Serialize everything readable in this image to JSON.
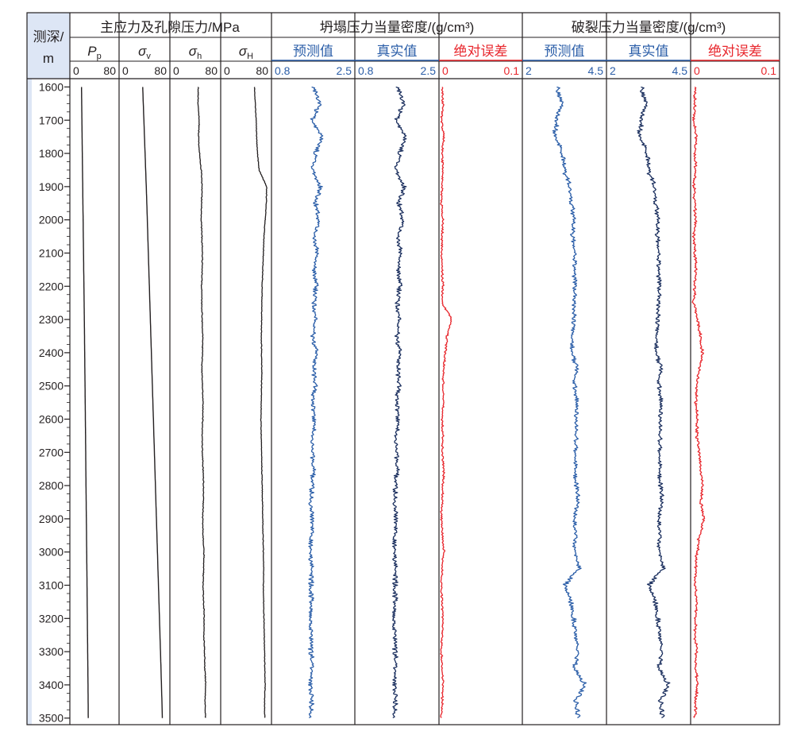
{
  "header": {
    "depth_label_1": "测深/",
    "depth_label_2": "m",
    "group_stress": "主应力及孔隙压力/MPa",
    "group_collapse": "坍塌压力当量密度/(g/cm³)",
    "group_fracture": "破裂压力当量密度/(g/cm³)"
  },
  "tracks": [
    {
      "id": "pp",
      "name": "P",
      "sub": "p",
      "italic": true,
      "min_label": "0",
      "max_label": "80",
      "color": "#231f20",
      "label_color": "#231f20"
    },
    {
      "id": "sv",
      "name": "σ",
      "sub": "v",
      "italic": true,
      "min_label": "0",
      "max_label": "80",
      "color": "#231f20",
      "label_color": "#231f20"
    },
    {
      "id": "sh",
      "name": "σ",
      "sub": "h",
      "italic": true,
      "min_label": "0",
      "max_label": "80",
      "color": "#231f20",
      "label_color": "#231f20"
    },
    {
      "id": "sH",
      "name": "σ",
      "sub": "H",
      "italic": true,
      "min_label": "0",
      "max_label": "80",
      "color": "#231f20",
      "label_color": "#231f20"
    },
    {
      "id": "col_pred",
      "name": "预测值",
      "sub": "",
      "italic": false,
      "min_label": "0.8",
      "max_label": "2.5",
      "color": "#2b5ea8",
      "label_color": "#2b5ea8"
    },
    {
      "id": "col_true",
      "name": "真实值",
      "sub": "",
      "italic": false,
      "min_label": "0.8",
      "max_label": "2.5",
      "color": "#1b2f5e",
      "label_color": "#2b5ea8"
    },
    {
      "id": "col_err",
      "name": "绝对误差",
      "sub": "",
      "italic": false,
      "min_label": "0",
      "max_label": "0.1",
      "color": "#e8262c",
      "label_color": "#e8262c"
    },
    {
      "id": "fr_pred",
      "name": "预测值",
      "sub": "",
      "italic": false,
      "min_label": "2",
      "max_label": "4.5",
      "color": "#2b5ea8",
      "label_color": "#2b5ea8"
    },
    {
      "id": "fr_true",
      "name": "真实值",
      "sub": "",
      "italic": false,
      "min_label": "2",
      "max_label": "4.5",
      "color": "#1b2f5e",
      "label_color": "#2b5ea8"
    },
    {
      "id": "fr_err",
      "name": "绝对误差",
      "sub": "",
      "italic": false,
      "min_label": "0",
      "max_label": "0.1",
      "color": "#e8262c",
      "label_color": "#e8262c"
    }
  ],
  "chart_data": {
    "type": "line",
    "layout": "well-log tracks, depth increasing downward",
    "y_axis": {
      "label": "测深/m",
      "range": [
        1575,
        3515
      ],
      "ticks": [
        1600,
        1700,
        1800,
        1900,
        2000,
        2100,
        2200,
        2300,
        2400,
        2500,
        2600,
        2700,
        2800,
        2900,
        3000,
        3100,
        3200,
        3300,
        3400,
        3500
      ]
    },
    "depth": [
      1600,
      1650,
      1700,
      1750,
      1800,
      1850,
      1900,
      1950,
      2000,
      2050,
      2100,
      2150,
      2200,
      2250,
      2300,
      2350,
      2400,
      2450,
      2500,
      2550,
      2600,
      2650,
      2700,
      2750,
      2800,
      2850,
      2900,
      2950,
      3000,
      3050,
      3100,
      3150,
      3200,
      3250,
      3300,
      3350,
      3400,
      3450,
      3500
    ],
    "series": [
      {
        "track": "pp",
        "name": "Pp",
        "xlim": [
          0,
          80
        ],
        "values": [
          17.5,
          17.8,
          18.2,
          18.5,
          18.9,
          19.2,
          19.6,
          19.9,
          20.3,
          20.6,
          21.0,
          21.3,
          21.7,
          22.0,
          22.4,
          22.7,
          23.0,
          23.3,
          23.6,
          23.9,
          24.2,
          24.5,
          24.8,
          25.0,
          25.3,
          25.6,
          25.9,
          26.2,
          26.5,
          26.8,
          27.1,
          27.3,
          27.6,
          27.9,
          28.2,
          28.5,
          28.8,
          29.0,
          29.2
        ]
      },
      {
        "track": "sv",
        "name": "σv",
        "xlim": [
          0,
          80
        ],
        "values": [
          37.0,
          38.0,
          39.0,
          40.0,
          41.0,
          42.0,
          43.0,
          43.9,
          44.8,
          45.6,
          46.5,
          47.3,
          48.2,
          49.0,
          49.9,
          50.7,
          51.6,
          52.4,
          53.3,
          54.1,
          55.0,
          55.8,
          56.7,
          57.5,
          58.4,
          59.2,
          60.1,
          60.9,
          61.8,
          62.6,
          63.5,
          64.3,
          65.2,
          66.0,
          66.9,
          67.7,
          68.5,
          69.3,
          70.0
        ]
      },
      {
        "track": "sh",
        "name": "σh",
        "xlim": [
          0,
          80
        ],
        "values": [
          45.0,
          44.5,
          46.5,
          45.5,
          47.0,
          50.0,
          51.5,
          50.5,
          50.0,
          51.0,
          52.0,
          51.5,
          50.5,
          51.0,
          51.5,
          52.5,
          52.0,
          51.0,
          52.0,
          53.0,
          52.5,
          51.5,
          52.0,
          53.0,
          54.0,
          53.5,
          52.5,
          53.0,
          54.5,
          54.0,
          53.0,
          54.0,
          55.0,
          54.5,
          55.5,
          56.0,
          57.5,
          56.5,
          57.0
        ]
      },
      {
        "track": "sH",
        "name": "σH",
        "xlim": [
          0,
          80
        ],
        "values": [
          54.0,
          55.5,
          57.0,
          57.5,
          59.0,
          62.0,
          74.5,
          74.0,
          72.0,
          70.0,
          69.0,
          68.0,
          67.0,
          66.5,
          66.0,
          65.5,
          66.0,
          66.5,
          66.0,
          65.5,
          65.0,
          65.5,
          66.0,
          66.5,
          67.0,
          67.5,
          68.0,
          68.5,
          69.0,
          69.5,
          69.0,
          69.5,
          70.0,
          70.5,
          71.0,
          71.5,
          72.0,
          71.0,
          71.5
        ]
      },
      {
        "track": "col_pred",
        "name": "坍塌压力 预测值",
        "xlim": [
          0.8,
          2.5
        ],
        "values": [
          1.65,
          1.8,
          1.62,
          1.85,
          1.7,
          1.63,
          1.8,
          1.7,
          1.76,
          1.68,
          1.74,
          1.66,
          1.72,
          1.67,
          1.7,
          1.64,
          1.72,
          1.66,
          1.7,
          1.63,
          1.68,
          1.65,
          1.62,
          1.66,
          1.63,
          1.6,
          1.64,
          1.61,
          1.58,
          1.63,
          1.6,
          1.62,
          1.59,
          1.61,
          1.6,
          1.63,
          1.58,
          1.62,
          1.6
        ]
      },
      {
        "track": "col_true",
        "name": "坍塌压力 真实值",
        "xlim": [
          0.8,
          2.5
        ],
        "values": [
          1.66,
          1.8,
          1.63,
          1.84,
          1.71,
          1.62,
          1.8,
          1.69,
          1.77,
          1.68,
          1.73,
          1.67,
          1.72,
          1.66,
          1.7,
          1.65,
          1.71,
          1.67,
          1.7,
          1.64,
          1.68,
          1.64,
          1.63,
          1.66,
          1.62,
          1.61,
          1.64,
          1.6,
          1.59,
          1.63,
          1.61,
          1.62,
          1.58,
          1.61,
          1.61,
          1.62,
          1.59,
          1.62,
          1.6
        ]
      },
      {
        "track": "col_err",
        "name": "坍塌压力 绝对误差",
        "xlim": [
          0,
          0.1
        ],
        "values": [
          0.002,
          0.003,
          0.001,
          0.004,
          0.002,
          0.003,
          0.002,
          0.001,
          0.003,
          0.002,
          0.001,
          0.002,
          0.003,
          0.002,
          0.014,
          0.008,
          0.006,
          0.004,
          0.003,
          0.004,
          0.002,
          0.003,
          0.002,
          0.004,
          0.003,
          0.002,
          0.001,
          0.002,
          0.004,
          0.002,
          0.001,
          0.002,
          0.003,
          0.002,
          0.001,
          0.002,
          0.003,
          0.002,
          0.001
        ]
      },
      {
        "track": "fr_pred",
        "name": "破裂压力 预测值",
        "xlim": [
          2,
          4.5
        ],
        "values": [
          3.05,
          3.15,
          3.0,
          2.95,
          3.2,
          3.25,
          3.4,
          3.45,
          3.55,
          3.5,
          3.58,
          3.55,
          3.6,
          3.55,
          3.55,
          3.45,
          3.5,
          3.62,
          3.55,
          3.65,
          3.6,
          3.63,
          3.58,
          3.6,
          3.62,
          3.65,
          3.55,
          3.58,
          3.6,
          3.7,
          3.25,
          3.45,
          3.55,
          3.6,
          3.65,
          3.55,
          3.9,
          3.6,
          3.7
        ]
      },
      {
        "track": "fr_true",
        "name": "破裂压力 真实值",
        "xlim": [
          2,
          4.5
        ],
        "values": [
          3.05,
          3.15,
          3.02,
          2.96,
          3.22,
          3.25,
          3.42,
          3.45,
          3.55,
          3.52,
          3.57,
          3.55,
          3.61,
          3.56,
          3.54,
          3.46,
          3.5,
          3.62,
          3.56,
          3.65,
          3.6,
          3.62,
          3.58,
          3.61,
          3.62,
          3.64,
          3.56,
          3.58,
          3.61,
          3.7,
          3.25,
          3.46,
          3.55,
          3.6,
          3.64,
          3.56,
          3.88,
          3.62,
          3.7
        ]
      },
      {
        "track": "fr_err",
        "name": "破裂压力 绝对误差",
        "xlim": [
          0,
          0.1
        ],
        "values": [
          0.004,
          0.003,
          0.002,
          0.005,
          0.003,
          0.004,
          0.002,
          0.003,
          0.004,
          0.002,
          0.003,
          0.004,
          0.003,
          0.002,
          0.006,
          0.01,
          0.012,
          0.008,
          0.005,
          0.004,
          0.006,
          0.005,
          0.008,
          0.01,
          0.012,
          0.01,
          0.014,
          0.008,
          0.006,
          0.004,
          0.003,
          0.005,
          0.004,
          0.003,
          0.005,
          0.004,
          0.006,
          0.004,
          0.003
        ]
      }
    ]
  }
}
